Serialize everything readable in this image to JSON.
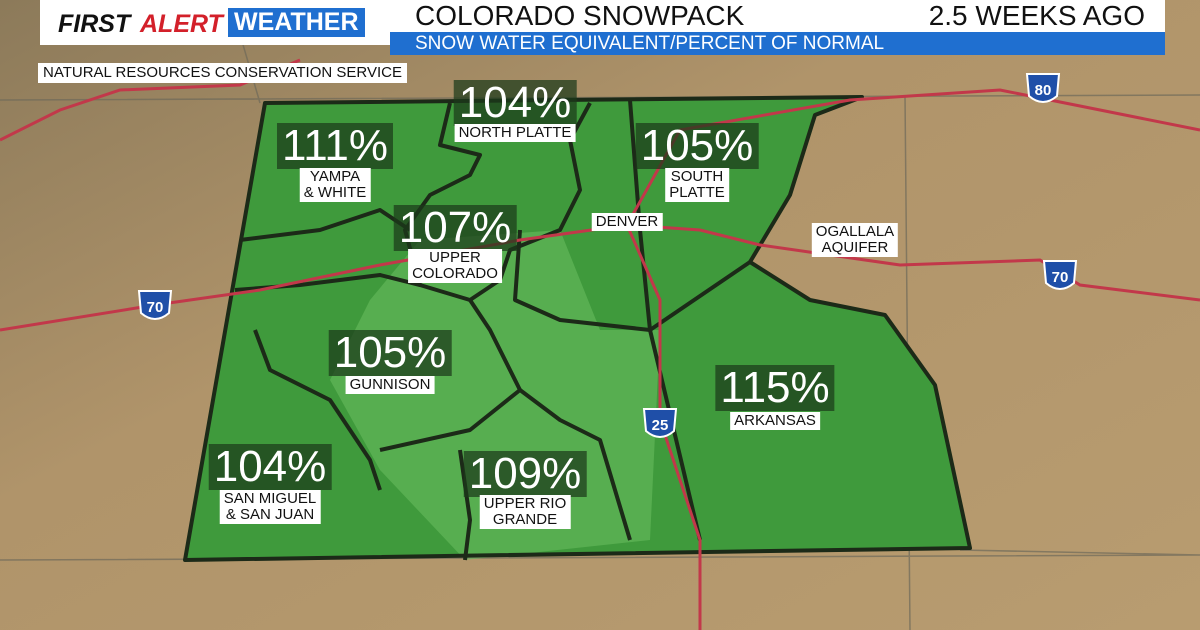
{
  "header": {
    "brand_first": "FIRST",
    "brand_alert": "ALERT",
    "brand_weather": "WEATHER",
    "title": "COLORADO SNOWPACK",
    "timeframe": "2.5 WEEKS AGO",
    "subtitle": "SNOW WATER EQUIVALENT/PERCENT OF NORMAL"
  },
  "source": "NATURAL RESOURCES CONSERVATION SERVICE",
  "basins": [
    {
      "percent": "104%",
      "name_lines": [
        "NORTH PLATTE"
      ]
    },
    {
      "percent": "111%",
      "name_lines": [
        "YAMPA",
        "& WHITE"
      ]
    },
    {
      "percent": "105%",
      "name_lines": [
        "SOUTH",
        "PLATTE"
      ]
    },
    {
      "percent": "107%",
      "name_lines": [
        "UPPER",
        "COLORADO"
      ]
    },
    {
      "percent": "105%",
      "name_lines": [
        "GUNNISON"
      ]
    },
    {
      "percent": "115%",
      "name_lines": [
        "ARKANSAS"
      ]
    },
    {
      "percent": "104%",
      "name_lines": [
        "SAN MIGUEL",
        "& SAN JUAN"
      ]
    },
    {
      "percent": "109%",
      "name_lines": [
        "UPPER RIO",
        "GRANDE"
      ]
    }
  ],
  "places": {
    "city": "DENVER",
    "aquifer_lines": [
      "OGALLALA",
      "AQUIFER"
    ]
  },
  "highways": [
    {
      "number": "80"
    },
    {
      "number": "70"
    },
    {
      "number": "70"
    },
    {
      "number": "25"
    }
  ]
}
